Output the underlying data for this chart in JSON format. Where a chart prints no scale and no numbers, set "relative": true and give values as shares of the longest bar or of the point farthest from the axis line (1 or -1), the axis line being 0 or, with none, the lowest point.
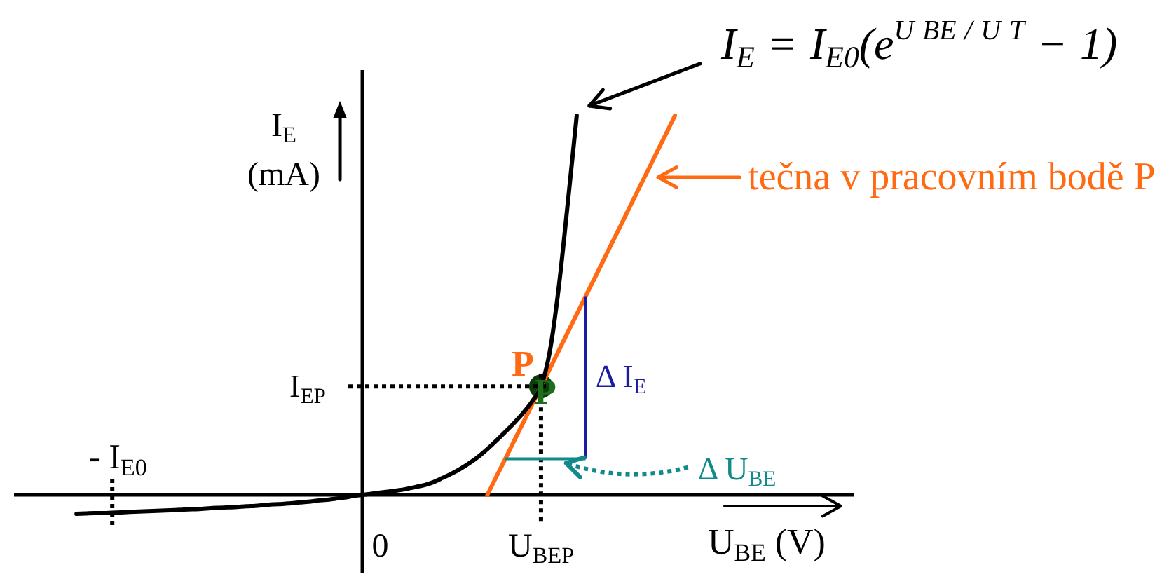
{
  "chart_data": {
    "type": "line",
    "relative": true,
    "xlabel": "U$_{BE}$ (V)",
    "ylabel": "I$_{E}$ (mA)",
    "categories": [
      null,
      null,
      null,
      null,
      null,
      null,
      null,
      null,
      null,
      null,
      null,
      null,
      null,
      null,
      null,
      null,
      null,
      null,
      null,
      null,
      null,
      null,
      null,
      null,
      null,
      null,
      null,
      null,
      null,
      null,
      null,
      null,
      null,
      null,
      null,
      null,
      null,
      null,
      null,
      null,
      null,
      "0",
      null,
      null,
      null,
      null,
      null,
      null,
      null,
      null,
      null,
      null,
      null,
      null,
      null,
      null,
      null,
      null,
      null,
      "U$_{BEP}$",
      null,
      null,
      null,
      null,
      null,
      null,
      null,
      null,
      null,
      null,
      null,
      null,
      null,
      null,
      null,
      null,
      null,
      null,
      null,
      null,
      null,
      null,
      null,
      null,
      null,
      null,
      null,
      null,
      null,
      null,
      null,
      null,
      null,
      null,
      null
    ],
    "series": [
      {
        "name": "I$_{E}$ = I$_{E0}$(e$^{U BE / U T}$ − 1)",
        "color": "#000000",
        "values": [
          null,
          null,
          null,
          null,
          null,
          null,
          null,
          -0.05,
          -0.049,
          -0.048,
          -0.048,
          -0.047,
          -0.046,
          -0.045,
          -0.044,
          -0.043,
          -0.042,
          -0.041,
          -0.04,
          -0.039,
          -0.038,
          -0.037,
          -0.035,
          -0.034,
          -0.033,
          -0.032,
          -0.03,
          -0.029,
          -0.027,
          -0.025,
          -0.024,
          -0.022,
          -0.02,
          -0.018,
          -0.015,
          -0.013,
          -0.01,
          -0.007,
          -0.003,
          0,
          0.003,
          0.006,
          0.009,
          0.012,
          0.016,
          0.021,
          0.026,
          0.034,
          0.045,
          0.056,
          0.069,
          0.084,
          0.101,
          0.121,
          0.143,
          0.166,
          0.19,
          0.216,
          0.246,
          0.286,
          0.38,
          0.55,
          0.77,
          1,
          null,
          null,
          null,
          null,
          null,
          null,
          null,
          null,
          null,
          null,
          null,
          null,
          null,
          null,
          null,
          null,
          null,
          null,
          null,
          null,
          null,
          null,
          null,
          null,
          null,
          null,
          null,
          null,
          null,
          null,
          null
        ]
      },
      {
        "name": "tečna v pracovním bodě P",
        "color": "#ff6a13",
        "values": [
          null,
          null,
          null,
          null,
          null,
          null,
          null,
          null,
          null,
          null,
          null,
          null,
          null,
          null,
          null,
          null,
          null,
          null,
          null,
          null,
          null,
          null,
          null,
          null,
          null,
          null,
          null,
          null,
          null,
          null,
          null,
          null,
          null,
          null,
          null,
          null,
          null,
          null,
          null,
          null,
          null,
          null,
          null,
          null,
          null,
          null,
          null,
          null,
          null,
          null,
          null,
          null,
          null,
          0,
          0.048,
          0.095,
          0.143,
          0.19,
          0.238,
          0.286,
          0.333,
          0.381,
          0.429,
          0.476,
          0.524,
          0.571,
          0.619,
          0.667,
          0.714,
          0.762,
          0.81,
          0.857,
          0.905,
          0.952,
          1,
          null,
          null,
          null,
          null,
          null,
          null,
          null,
          null,
          null,
          null,
          null,
          null,
          null,
          null,
          null,
          null,
          null,
          null,
          null,
          null
        ]
      },
      {
        "name": "P",
        "type": "scatter",
        "marker": "circle",
        "color": "#0b3d0b",
        "values": [
          null,
          null,
          null,
          null,
          null,
          null,
          null,
          null,
          null,
          null,
          null,
          null,
          null,
          null,
          null,
          null,
          null,
          null,
          null,
          null,
          null,
          null,
          null,
          null,
          null,
          null,
          null,
          null,
          null,
          null,
          null,
          null,
          null,
          null,
          null,
          null,
          null,
          null,
          null,
          null,
          null,
          null,
          null,
          null,
          null,
          null,
          null,
          null,
          null,
          null,
          null,
          null,
          null,
          null,
          null,
          null,
          null,
          null,
          null,
          0.286,
          null,
          null,
          null,
          null,
          null,
          null,
          null,
          null,
          null,
          null,
          null,
          null,
          null,
          null,
          null,
          null,
          null,
          null,
          null,
          null,
          null,
          null,
          null,
          null,
          null,
          null,
          null,
          null,
          null,
          null,
          null,
          null,
          null,
          null,
          null
        ]
      }
    ],
    "annotations": [
      "I$_{EP}$",
      {
        "text": "- I$_{E0}$",
        "y": -0.05
      },
      "P",
      "Δ I$_{E}$",
      "Δ U$_{BE}$"
    ]
  }
}
